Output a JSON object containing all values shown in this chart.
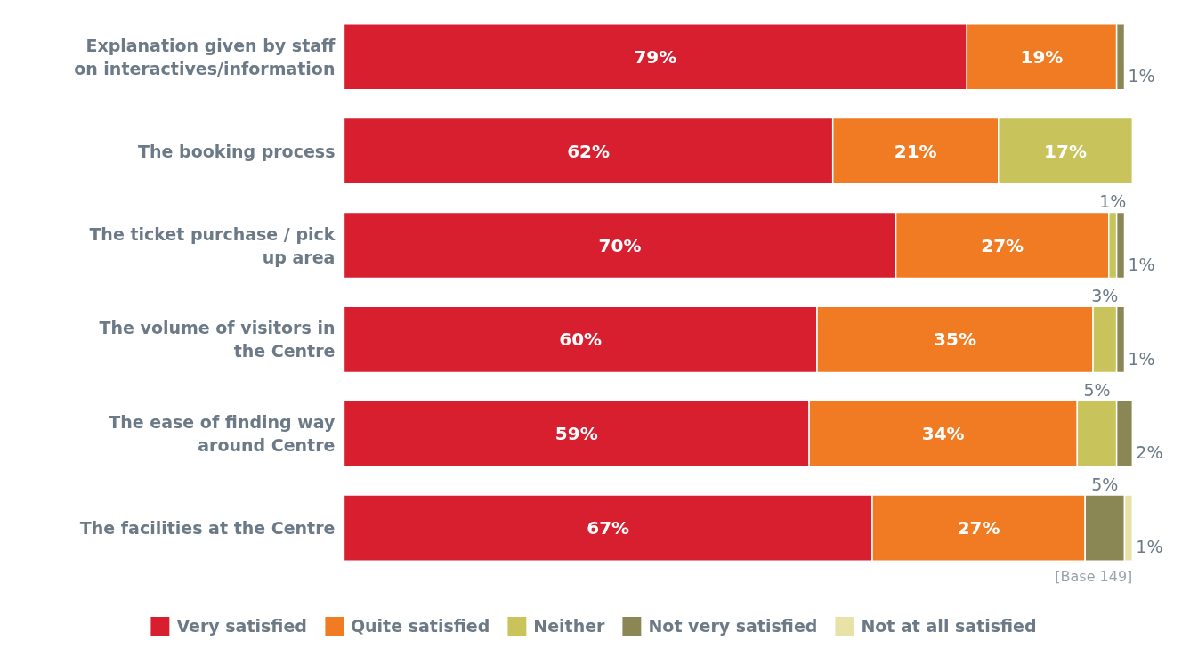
{
  "chart_data": {
    "type": "bar",
    "orientation": "horizontal",
    "stacked": true,
    "legend": "bottom",
    "categories": [
      "Explanation given by staff on interactives/information",
      "The booking process",
      "The ticket purchase / pick up area",
      "The volume of visitors in the Centre",
      "The ease of finding way around Centre",
      "The facilities at the Centre"
    ],
    "series": [
      {
        "name": "Very satisfied",
        "color": "#d71f30",
        "values": [
          79,
          62,
          70,
          60,
          59,
          67
        ],
        "value_labels": [
          "79%",
          "62%",
          "70%",
          "60%",
          "59%",
          "67%"
        ]
      },
      {
        "name": "Quite satisfied",
        "color": "#f07b22",
        "values": [
          19,
          21,
          27,
          35,
          34,
          27
        ],
        "value_labels": [
          "19%",
          "21%",
          "27%",
          "35%",
          "34%",
          "27%"
        ]
      },
      {
        "name": "Neither",
        "color": "#c8c35b",
        "values": [
          null,
          17,
          1,
          3,
          5,
          null
        ],
        "value_labels": [
          null,
          "17%",
          "1%",
          "3%",
          "5%",
          null
        ]
      },
      {
        "name": "Not very satisfied",
        "color": "#8a8754",
        "values": [
          1,
          null,
          1,
          1,
          2,
          5
        ],
        "value_labels": [
          "1%",
          null,
          "1%",
          "1%",
          "2%",
          "5%"
        ]
      },
      {
        "name": "Not at all satisfied",
        "color": "#e8e2a6",
        "values": [
          null,
          null,
          null,
          null,
          null,
          1
        ],
        "value_labels": [
          null,
          null,
          null,
          null,
          null,
          "1%"
        ]
      }
    ],
    "annotations": [
      "[Base 149]"
    ]
  }
}
